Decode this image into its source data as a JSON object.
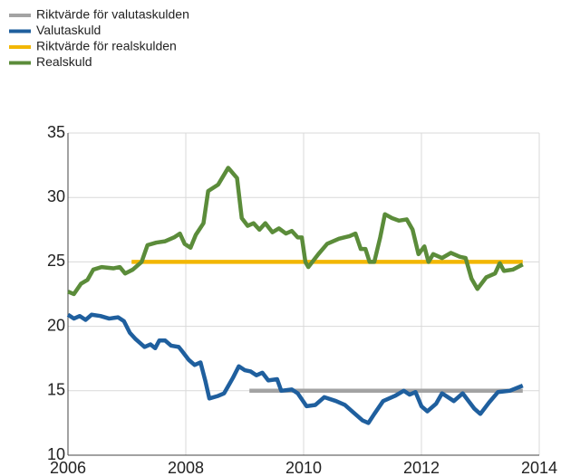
{
  "chart_data": {
    "type": "line",
    "series": [
      {
        "name": "Riktvärde för valutaskulden",
        "color": "#a3a3a3",
        "x": [
          2009.08,
          2013.72
        ],
        "values": [
          15,
          15
        ]
      },
      {
        "name": "Valutaskuld",
        "color": "#1f5f9e",
        "x": [
          2006.0,
          2006.1,
          2006.2,
          2006.3,
          2006.4,
          2006.55,
          2006.7,
          2006.85,
          2006.95,
          2007.05,
          2007.15,
          2007.3,
          2007.4,
          2007.48,
          2007.55,
          2007.65,
          2007.75,
          2007.88,
          2007.95,
          2008.05,
          2008.15,
          2008.25,
          2008.33,
          2008.4,
          2008.55,
          2008.65,
          2008.8,
          2008.9,
          2009.0,
          2009.1,
          2009.2,
          2009.3,
          2009.4,
          2009.55,
          2009.62,
          2009.8,
          2009.9,
          2010.05,
          2010.2,
          2010.35,
          2010.55,
          2010.7,
          2010.85,
          2011.0,
          2011.1,
          2011.2,
          2011.35,
          2011.55,
          2011.7,
          2011.8,
          2011.9,
          2012.0,
          2012.1,
          2012.25,
          2012.35,
          2012.55,
          2012.7,
          2012.9,
          2013.0,
          2013.15,
          2013.3,
          2013.5,
          2013.72
        ],
        "values": [
          20.9,
          20.6,
          20.8,
          20.5,
          20.9,
          20.8,
          20.6,
          20.7,
          20.4,
          19.5,
          19.0,
          18.4,
          18.6,
          18.3,
          18.9,
          18.9,
          18.5,
          18.4,
          18.0,
          17.4,
          17.0,
          17.2,
          15.8,
          14.4,
          14.6,
          14.8,
          16.0,
          16.9,
          16.6,
          16.5,
          16.2,
          16.4,
          15.8,
          15.9,
          15.0,
          15.1,
          14.8,
          13.8,
          13.9,
          14.5,
          14.2,
          13.9,
          13.3,
          12.7,
          12.5,
          13.2,
          14.2,
          14.6,
          15.0,
          14.7,
          14.9,
          13.8,
          13.4,
          14.0,
          14.8,
          14.2,
          14.8,
          13.6,
          13.2,
          14.1,
          14.9,
          15.0,
          15.4
        ]
      },
      {
        "name": "Riktvärde för realskulden",
        "color": "#f2b705",
        "x": [
          2007.08,
          2013.72
        ],
        "values": [
          25,
          25
        ]
      },
      {
        "name": "Realskuld",
        "color": "#5b8c3a",
        "x": [
          2006.0,
          2006.1,
          2006.22,
          2006.33,
          2006.43,
          2006.57,
          2006.77,
          2006.88,
          2006.97,
          2007.1,
          2007.25,
          2007.35,
          2007.5,
          2007.65,
          2007.8,
          2007.9,
          2007.98,
          2008.08,
          2008.17,
          2008.3,
          2008.38,
          2008.55,
          2008.72,
          2008.87,
          2008.95,
          2009.05,
          2009.15,
          2009.25,
          2009.35,
          2009.47,
          2009.58,
          2009.7,
          2009.8,
          2009.9,
          2009.97,
          2010.03,
          2010.08,
          2010.25,
          2010.4,
          2010.6,
          2010.78,
          2010.88,
          2010.97,
          2011.05,
          2011.12,
          2011.2,
          2011.3,
          2011.38,
          2011.5,
          2011.62,
          2011.75,
          2011.85,
          2011.95,
          2012.05,
          2012.12,
          2012.2,
          2012.35,
          2012.5,
          2012.65,
          2012.75,
          2012.85,
          2012.95,
          2013.1,
          2013.25,
          2013.33,
          2013.4,
          2013.55,
          2013.72
        ],
        "values": [
          22.7,
          22.5,
          23.3,
          23.6,
          24.4,
          24.6,
          24.5,
          24.6,
          24.1,
          24.4,
          25.0,
          26.3,
          26.5,
          26.6,
          26.9,
          27.2,
          26.4,
          26.1,
          27.1,
          28.0,
          30.5,
          31.0,
          32.3,
          31.5,
          28.4,
          27.8,
          28.0,
          27.5,
          28.0,
          27.3,
          27.6,
          27.2,
          27.4,
          26.9,
          26.9,
          25.0,
          24.6,
          25.6,
          26.4,
          26.8,
          27.0,
          27.2,
          26.0,
          26.0,
          25.0,
          25.0,
          26.9,
          28.7,
          28.4,
          28.2,
          28.3,
          27.5,
          25.6,
          26.2,
          25.0,
          25.6,
          25.3,
          25.7,
          25.4,
          25.3,
          23.7,
          22.9,
          23.8,
          24.1,
          24.9,
          24.3,
          24.4,
          24.8
        ]
      }
    ],
    "xlim": [
      2006,
      2014
    ],
    "xticks": [
      2006,
      2008,
      2010,
      2012,
      2014
    ],
    "ylim": [
      10,
      35
    ],
    "yticks": [
      10,
      15,
      20,
      25,
      30,
      35
    ],
    "grid": true,
    "legend": "top-left"
  }
}
